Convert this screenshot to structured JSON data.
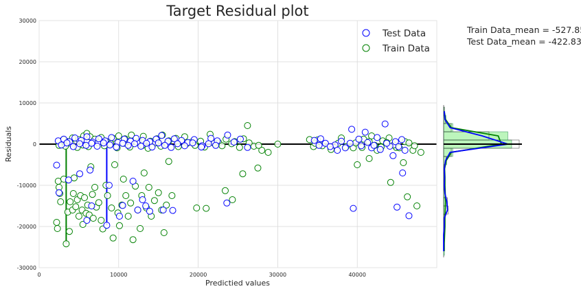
{
  "chart_data": {
    "type": "scatter",
    "title": "Target Residual plot",
    "xlabel": "Predictied values",
    "ylabel": "Residuals",
    "xlim": [
      0,
      50000
    ],
    "ylim": [
      -30000,
      30000
    ],
    "xticks": [
      0,
      10000,
      20000,
      30000,
      40000
    ],
    "yticks": [
      -30000,
      -20000,
      -10000,
      0,
      10000,
      20000,
      30000
    ],
    "grid": true,
    "legend": "top-right",
    "annotations": [
      "Train Data_mean = -527.85",
      "Test Data_mean = -422.83"
    ],
    "series": [
      {
        "name": "Train Data",
        "color": "#008000",
        "points": [
          [
            2200,
            -19000
          ],
          [
            2300,
            -20500
          ],
          [
            2400,
            -9000
          ],
          [
            2500,
            -10500
          ],
          [
            2600,
            -12000
          ],
          [
            2700,
            -14000
          ],
          [
            3100,
            -8500
          ],
          [
            3400,
            -24200
          ],
          [
            3600,
            -16500
          ],
          [
            3800,
            -21200
          ],
          [
            3900,
            -14000
          ],
          [
            4200,
            -16000
          ],
          [
            4300,
            -12000
          ],
          [
            4400,
            -8200
          ],
          [
            4600,
            -15200
          ],
          [
            4800,
            -13500
          ],
          [
            5000,
            -17500
          ],
          [
            5200,
            -12500
          ],
          [
            5400,
            -16000
          ],
          [
            5500,
            -19500
          ],
          [
            5700,
            -13000
          ],
          [
            5900,
            -16800
          ],
          [
            6100,
            -14800
          ],
          [
            6300,
            -17200
          ],
          [
            6500,
            -5500
          ],
          [
            6700,
            -12200
          ],
          [
            6800,
            -18000
          ],
          [
            7000,
            -10500
          ],
          [
            7200,
            -15300
          ],
          [
            7500,
            -14200
          ],
          [
            7800,
            -18500
          ],
          [
            8000,
            -20600
          ],
          [
            8400,
            -10000
          ],
          [
            8600,
            -12500
          ],
          [
            9100,
            -15500
          ],
          [
            9300,
            -22800
          ],
          [
            9500,
            -5000
          ],
          [
            9900,
            -16700
          ],
          [
            10100,
            -19800
          ],
          [
            10400,
            -14800
          ],
          [
            10600,
            -8500
          ],
          [
            10900,
            -12500
          ],
          [
            11200,
            -17500
          ],
          [
            11500,
            -14300
          ],
          [
            11800,
            -23200
          ],
          [
            12100,
            -10200
          ],
          [
            12400,
            -16000
          ],
          [
            12700,
            -20500
          ],
          [
            12900,
            -12500
          ],
          [
            13200,
            -7000
          ],
          [
            13500,
            -15500
          ],
          [
            13800,
            -10500
          ],
          [
            14100,
            -17500
          ],
          [
            14500,
            -13700
          ],
          [
            15000,
            -11800
          ],
          [
            15400,
            -16000
          ],
          [
            15700,
            -21500
          ],
          [
            16000,
            -14800
          ],
          [
            16300,
            -4200
          ],
          [
            16700,
            -12500
          ],
          [
            19800,
            -15500
          ],
          [
            21000,
            -15600
          ],
          [
            23400,
            -11300
          ],
          [
            24300,
            -13500
          ],
          [
            25600,
            -7200
          ],
          [
            27500,
            -5800
          ],
          [
            40000,
            -5000
          ],
          [
            41500,
            -3500
          ],
          [
            44200,
            -9300
          ],
          [
            45800,
            -4500
          ],
          [
            46300,
            -12800
          ],
          [
            47500,
            -15000
          ],
          [
            48000,
            -2000
          ],
          [
            3000,
            1000
          ],
          [
            3600,
            600
          ],
          [
            4200,
            1500
          ],
          [
            5000,
            1100
          ],
          [
            5600,
            2000
          ],
          [
            6000,
            2600
          ],
          [
            6400,
            1800
          ],
          [
            7000,
            1200
          ],
          [
            7800,
            1600
          ],
          [
            8500,
            600
          ],
          [
            9300,
            1400
          ],
          [
            10000,
            2000
          ],
          [
            10800,
            1300
          ],
          [
            11600,
            2200
          ],
          [
            12500,
            600
          ],
          [
            13100,
            1900
          ],
          [
            14000,
            700
          ],
          [
            14800,
            1300
          ],
          [
            15500,
            2200
          ],
          [
            16300,
            800
          ],
          [
            17200,
            1400
          ],
          [
            18300,
            1800
          ],
          [
            19200,
            500
          ],
          [
            20300,
            700
          ],
          [
            21500,
            2400
          ],
          [
            22600,
            300
          ],
          [
            23500,
            1200
          ],
          [
            24600,
            600
          ],
          [
            25700,
            1300
          ],
          [
            26200,
            4500
          ],
          [
            27000,
            -500
          ],
          [
            28000,
            -1500
          ],
          [
            28800,
            -2000
          ],
          [
            30000,
            0
          ],
          [
            34000,
            1100
          ],
          [
            34500,
            -600
          ],
          [
            35000,
            1000
          ],
          [
            38000,
            1500
          ],
          [
            39500,
            -900
          ],
          [
            40800,
            1200
          ],
          [
            41800,
            2000
          ],
          [
            42500,
            -1500
          ],
          [
            43200,
            800
          ],
          [
            44000,
            1500
          ],
          [
            44900,
            -800
          ],
          [
            46000,
            600
          ],
          [
            47000,
            -1500
          ],
          [
            2500,
            -300
          ],
          [
            3300,
            -500
          ],
          [
            4000,
            200
          ],
          [
            4800,
            -800
          ],
          [
            5500,
            -200
          ],
          [
            6200,
            -600
          ],
          [
            7400,
            300
          ],
          [
            8200,
            -400
          ],
          [
            9000,
            100
          ],
          [
            9800,
            -900
          ],
          [
            10600,
            200
          ],
          [
            11400,
            -700
          ],
          [
            12300,
            400
          ],
          [
            13000,
            -300
          ],
          [
            13700,
            -1000
          ],
          [
            14600,
            300
          ],
          [
            15300,
            -500
          ],
          [
            16100,
            100
          ],
          [
            17500,
            -600
          ],
          [
            18600,
            200
          ],
          [
            19600,
            -300
          ],
          [
            20800,
            -700
          ],
          [
            22000,
            200
          ],
          [
            23000,
            -400
          ],
          [
            24200,
            100
          ],
          [
            25200,
            -800
          ],
          [
            26400,
            300
          ],
          [
            27600,
            -300
          ],
          [
            34700,
            200
          ],
          [
            35600,
            -400
          ],
          [
            36700,
            -1300
          ],
          [
            37600,
            200
          ],
          [
            38600,
            -600
          ],
          [
            39800,
            300
          ],
          [
            40600,
            -800
          ],
          [
            41500,
            600
          ],
          [
            42200,
            -300
          ],
          [
            43000,
            -700
          ],
          [
            43700,
            400
          ],
          [
            44600,
            -200
          ],
          [
            45300,
            -900
          ],
          [
            46500,
            300
          ],
          [
            47200,
            -400
          ]
        ]
      },
      {
        "name": "Test Data",
        "color": "#0000ff",
        "points": [
          [
            2200,
            -5100
          ],
          [
            2500,
            -11800
          ],
          [
            3700,
            -8700
          ],
          [
            5100,
            -7200
          ],
          [
            6000,
            -18500
          ],
          [
            6400,
            -6300
          ],
          [
            6600,
            -15000
          ],
          [
            8500,
            -19700
          ],
          [
            8800,
            -10000
          ],
          [
            10100,
            -17500
          ],
          [
            10500,
            -14900
          ],
          [
            11800,
            -9000
          ],
          [
            12400,
            -16000
          ],
          [
            13000,
            -13500
          ],
          [
            13400,
            -15000
          ],
          [
            13900,
            -16300
          ],
          [
            15600,
            -16000
          ],
          [
            16800,
            -16100
          ],
          [
            23600,
            -14300
          ],
          [
            39500,
            -15600
          ],
          [
            45000,
            -15300
          ],
          [
            45700,
            -7000
          ],
          [
            46500,
            -17400
          ],
          [
            2400,
            800
          ],
          [
            3100,
            1200
          ],
          [
            3800,
            600
          ],
          [
            4500,
            1500
          ],
          [
            5300,
            900
          ],
          [
            6000,
            1800
          ],
          [
            6700,
            500
          ],
          [
            7500,
            1300
          ],
          [
            8300,
            800
          ],
          [
            9100,
            1600
          ],
          [
            9900,
            400
          ],
          [
            10700,
            1200
          ],
          [
            11500,
            700
          ],
          [
            12200,
            1400
          ],
          [
            13000,
            900
          ],
          [
            13900,
            600
          ],
          [
            14700,
            1200
          ],
          [
            15400,
            2100
          ],
          [
            16200,
            700
          ],
          [
            17000,
            1300
          ],
          [
            17900,
            900
          ],
          [
            18700,
            400
          ],
          [
            19500,
            1100
          ],
          [
            20500,
            -400
          ],
          [
            21600,
            1400
          ],
          [
            22400,
            800
          ],
          [
            23700,
            2200
          ],
          [
            24500,
            500
          ],
          [
            25300,
            1200
          ],
          [
            26200,
            -800
          ],
          [
            34600,
            900
          ],
          [
            35400,
            1300
          ],
          [
            37200,
            -200
          ],
          [
            38000,
            700
          ],
          [
            39300,
            3600
          ],
          [
            40200,
            1200
          ],
          [
            41000,
            2900
          ],
          [
            41800,
            -900
          ],
          [
            42500,
            1600
          ],
          [
            43500,
            4900
          ],
          [
            44100,
            -500
          ],
          [
            44800,
            600
          ],
          [
            45600,
            1100
          ],
          [
            2800,
            -200
          ],
          [
            3500,
            300
          ],
          [
            4300,
            -600
          ],
          [
            5100,
            100
          ],
          [
            5900,
            -300
          ],
          [
            6600,
            200
          ],
          [
            7300,
            -500
          ],
          [
            8100,
            300
          ],
          [
            8900,
            -200
          ],
          [
            9700,
            -700
          ],
          [
            10500,
            200
          ],
          [
            11200,
            -300
          ],
          [
            12000,
            100
          ],
          [
            12800,
            -500
          ],
          [
            13500,
            200
          ],
          [
            14200,
            -700
          ],
          [
            15000,
            300
          ],
          [
            15800,
            -300
          ],
          [
            16600,
            -800
          ],
          [
            17400,
            100
          ],
          [
            18300,
            -400
          ],
          [
            19300,
            300
          ],
          [
            20400,
            -700
          ],
          [
            21300,
            100
          ],
          [
            22200,
            -300
          ],
          [
            35200,
            -300
          ],
          [
            36000,
            200
          ],
          [
            36600,
            -600
          ],
          [
            37500,
            -1500
          ],
          [
            38500,
            -900
          ],
          [
            39100,
            200
          ],
          [
            40500,
            -400
          ],
          [
            41300,
            400
          ],
          [
            42100,
            -300
          ],
          [
            42900,
            -1300
          ],
          [
            43700,
            200
          ],
          [
            44500,
            -2800
          ],
          [
            45200,
            -600
          ],
          [
            46000,
            -1500
          ]
        ]
      }
    ],
    "vertical_segments": [
      {
        "series": "Train Data",
        "x": 3400,
        "y0": 0,
        "y1": -24200
      },
      {
        "series": "Test Data",
        "x": 8500,
        "y0": 0,
        "y1": -19700
      }
    ],
    "distribution": {
      "orientation": "horizontal",
      "bins": [
        -27000,
        -25000,
        -23000,
        -21000,
        -19000,
        -17000,
        -15000,
        -13000,
        -11000,
        -9000,
        -7000,
        -5000,
        -3000,
        -1000,
        1000,
        3000,
        5000,
        7000,
        9000
      ],
      "train_density": [
        0.01,
        0.01,
        0.015,
        0.02,
        0.02,
        0.025,
        0.03,
        0.025,
        0.02,
        0.02,
        0.015,
        0.04,
        0.12,
        0.9,
        0.85,
        0.12,
        0.03,
        0.01
      ],
      "test_density": [
        0,
        0,
        0,
        0.01,
        0.01,
        0.06,
        0.05,
        0.02,
        0.01,
        0.015,
        0.01,
        0.03,
        0.1,
        1.0,
        0.6,
        0.1,
        0.02,
        0.01
      ],
      "train_kde_color": "#008000",
      "test_kde_color": "#0000ff"
    }
  }
}
